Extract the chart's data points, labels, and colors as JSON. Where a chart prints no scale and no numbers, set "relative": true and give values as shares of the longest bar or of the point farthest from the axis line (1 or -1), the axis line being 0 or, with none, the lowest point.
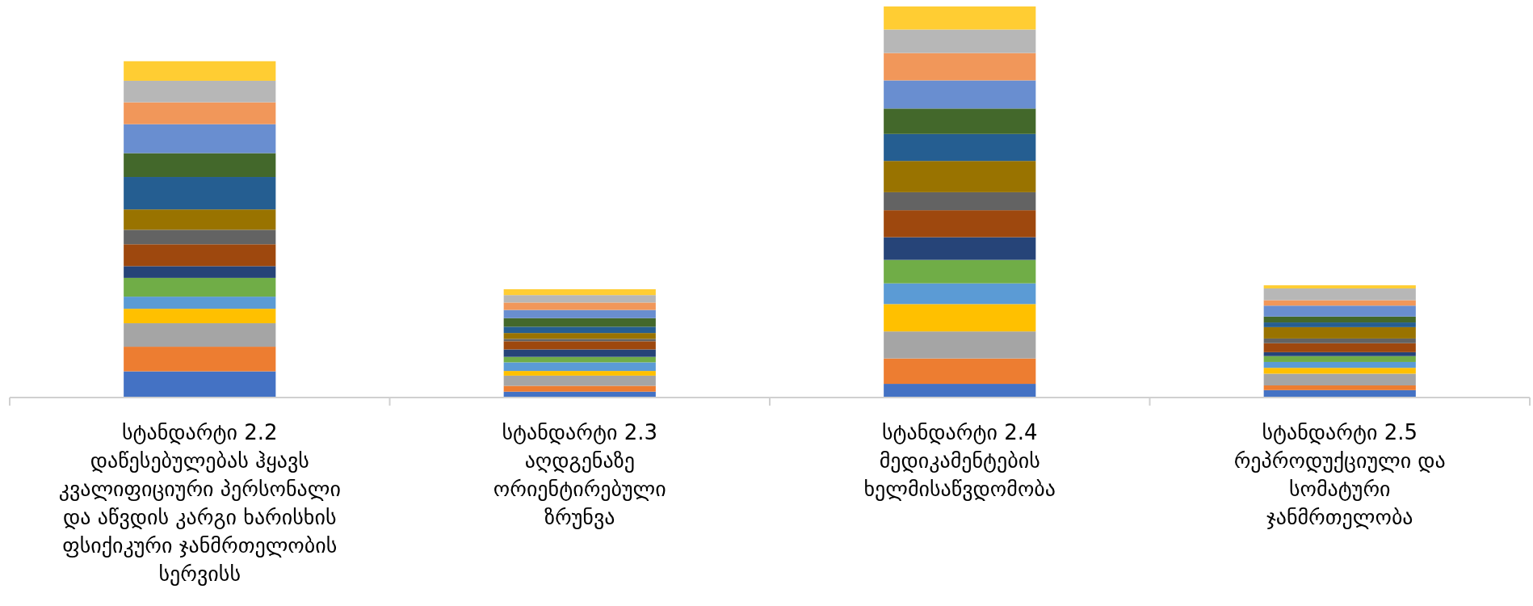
{
  "chart_data": {
    "type": "bar",
    "stacked": true,
    "relative": true,
    "categories": [
      "სტანდარტი 2.2\nდაწესებულებას ჰყავს\nკვალიფიციური პერსონალი\nდა აწვდის კარგი ხარისხის\nფსიქიკური ჯანმრთელობის\nსერვისს",
      "სტანდარტი 2.3\nაღდგენაზე\nორიენტირებული\nზრუნვა",
      "სტანდარტი 2.4\nმედიკამენტების\nხელმისაწვდომობა",
      "სტანდარტი 2.5\nრეპროდუქციული და\nსომატური\nჯანმრთელობა"
    ],
    "series": [
      {
        "color": "#4472c4",
        "values": [
          0.067,
          0.015,
          0.035,
          0.019
        ]
      },
      {
        "color": "#ed7d31",
        "values": [
          0.063,
          0.015,
          0.065,
          0.012
        ]
      },
      {
        "color": "#a5a5a5",
        "values": [
          0.06,
          0.026,
          0.069,
          0.03
        ]
      },
      {
        "color": "#ffc000",
        "values": [
          0.037,
          0.012,
          0.07,
          0.015
        ]
      },
      {
        "color": "#5b9bd5",
        "values": [
          0.031,
          0.022,
          0.053,
          0.015
        ]
      },
      {
        "color": "#70ad47",
        "values": [
          0.048,
          0.014,
          0.06,
          0.015
        ]
      },
      {
        "color": "#264478",
        "values": [
          0.03,
          0.019,
          0.058,
          0.01
        ]
      },
      {
        "color": "#9e480e",
        "values": [
          0.056,
          0.021,
          0.069,
          0.023
        ]
      },
      {
        "color": "#636363",
        "values": [
          0.037,
          0.006,
          0.046,
          0.012
        ]
      },
      {
        "color": "#997300",
        "values": [
          0.052,
          0.015,
          0.08,
          0.029
        ]
      },
      {
        "color": "#255e91",
        "values": [
          0.083,
          0.016,
          0.069,
          0.012
        ]
      },
      {
        "color": "#43682b",
        "values": [
          0.061,
          0.022,
          0.065,
          0.015
        ]
      },
      {
        "color": "#698ed0",
        "values": [
          0.074,
          0.021,
          0.072,
          0.028
        ]
      },
      {
        "color": "#f1975a",
        "values": [
          0.056,
          0.019,
          0.07,
          0.014
        ]
      },
      {
        "color": "#b7b7b7",
        "values": [
          0.055,
          0.019,
          0.06,
          0.03
        ]
      },
      {
        "color": "#ffcd33",
        "values": [
          0.05,
          0.015,
          0.059,
          0.008
        ]
      }
    ]
  }
}
